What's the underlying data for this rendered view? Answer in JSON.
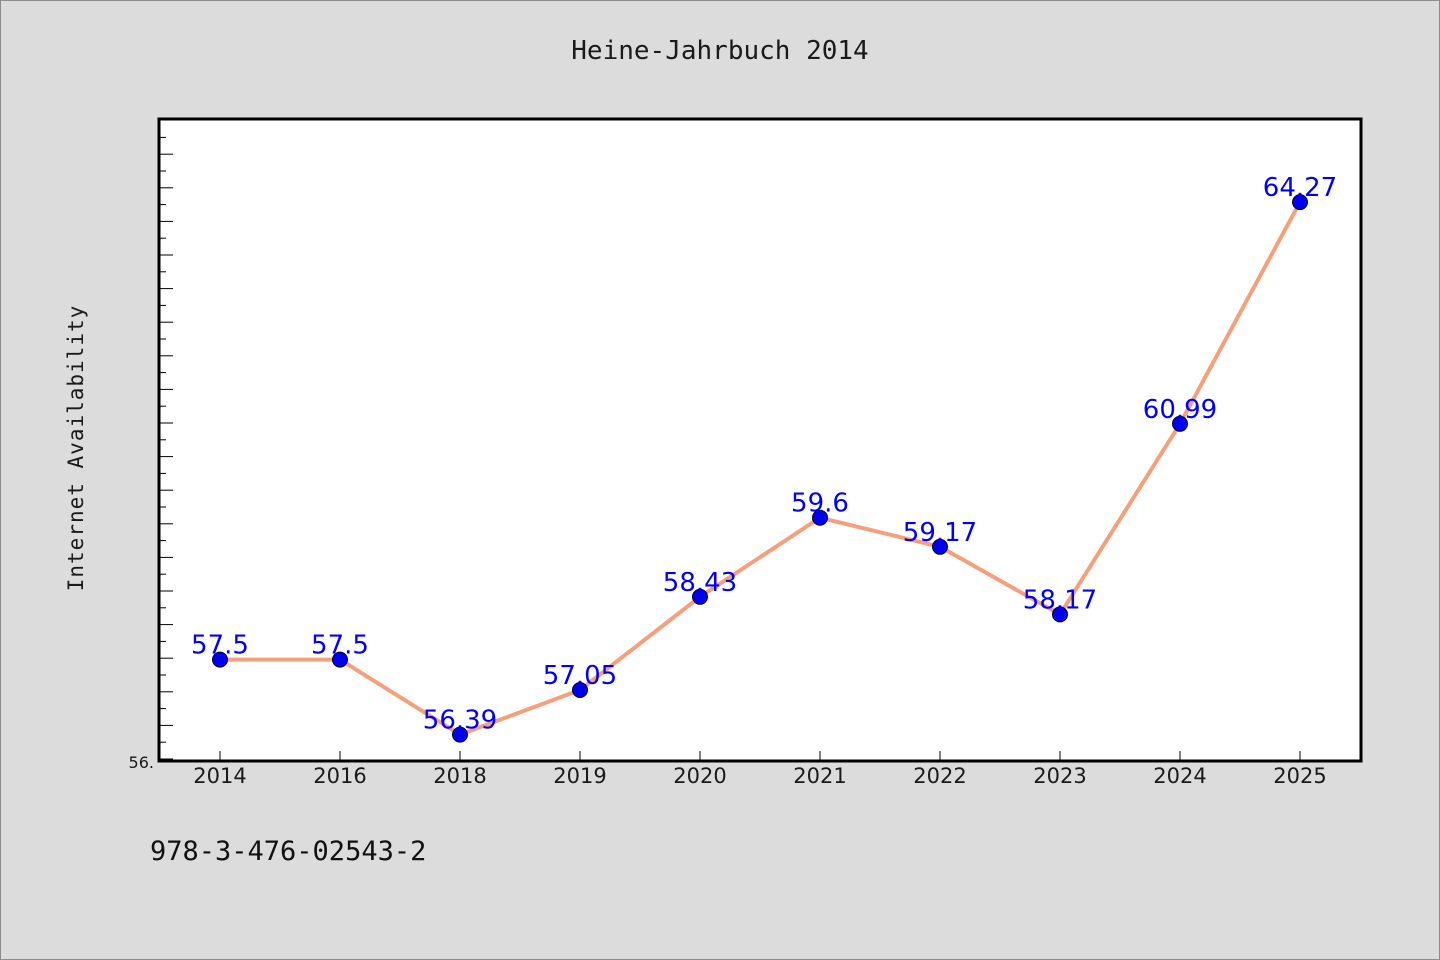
{
  "chart_data": {
    "type": "line",
    "title": "Heine-Jahrbuch 2014",
    "xlabel": "",
    "ylabel": "Internet Availability",
    "categories": [
      "2014",
      "2016",
      "2018",
      "2019",
      "2020",
      "2021",
      "2022",
      "2023",
      "2024",
      "2025"
    ],
    "series": [
      {
        "values": [
          57.5,
          57.5,
          56.39,
          57.05,
          58.43,
          59.6,
          59.17,
          58.17,
          60.99,
          64.27
        ],
        "data_labels": [
          "57.5",
          "57.5",
          "56.39",
          "57.05",
          "58.43",
          "59.6",
          "59.17",
          "58.17",
          "60.99",
          "64.27"
        ],
        "line_color": "#f4a07c",
        "marker_color": "#0000ee"
      }
    ],
    "ylim": [
      56.0,
      65.5
    ],
    "y_tick_label": "56.",
    "grid": false,
    "label_color": "#0000ff"
  },
  "footer": {
    "isbn": "978-3-476-02543-2"
  }
}
